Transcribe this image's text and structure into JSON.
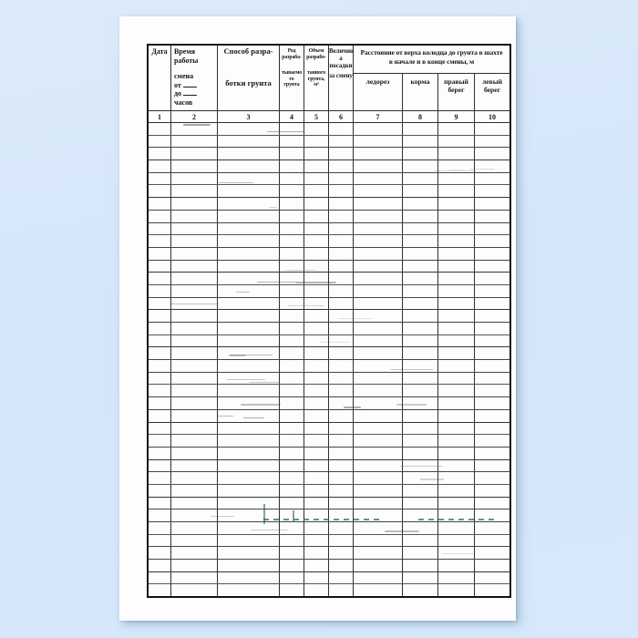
{
  "colors": {
    "background": "#d6e8fa",
    "paper": "#fdfdfd",
    "ink": "#151515",
    "line": "#2f2f2f",
    "artifact_green": "#1c6b42"
  },
  "table": {
    "header": {
      "col1": {
        "title": "Дата"
      },
      "col2": {
        "line1": "Время работы",
        "line2": "смена",
        "from_label": "от",
        "to_label": "до",
        "line5": "часов"
      },
      "col3": {
        "line1": "Способ разра-",
        "line2": "ботки грунта"
      },
      "col4": {
        "line1": "Род",
        "line2": "разраба-",
        "line3": "тываемо",
        "line4": "го",
        "line5": "грунта"
      },
      "col5": {
        "line1": "Объем",
        "line2": "разрабо-",
        "line3": "танного",
        "line4": "грунта,",
        "line5": "м³"
      },
      "col6": {
        "line1": "Величин",
        "line2": "а",
        "line3": "посадки",
        "line4": "за смену"
      },
      "group": {
        "title_line1": "Расстояние от верха колодца до грунта в шахте",
        "title_line2": "в начале и в конце смены, м",
        "sub": [
          "ледорез",
          "корма",
          "правый берег",
          "левый берег"
        ]
      }
    },
    "number_row": [
      "1",
      "2",
      "3",
      "4",
      "5",
      "6",
      "7",
      "8",
      "9",
      "10"
    ],
    "body": {
      "row_count": 38,
      "columns": 10,
      "entries": []
    }
  }
}
